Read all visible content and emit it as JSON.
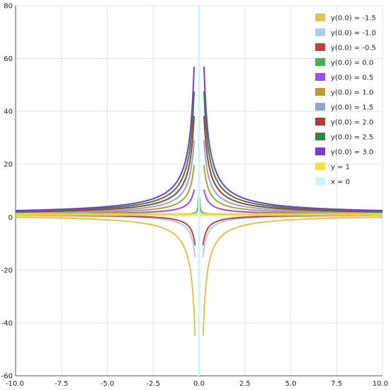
{
  "chart_data": {
    "type": "line",
    "title": "",
    "xlabel": "",
    "ylabel": "",
    "xlim": [
      -10,
      10
    ],
    "ylim": [
      -60,
      80
    ],
    "grid": true,
    "legend_position": "top-right",
    "x_ticks": [
      -10.0,
      -7.5,
      -5.0,
      -2.5,
      0.0,
      2.5,
      5.0,
      7.5,
      10.0
    ],
    "x_tick_labels": [
      "-10.0",
      "-7.5",
      "-5.0",
      "-2.5",
      "0.0",
      "2.5",
      "5.0",
      "7.5",
      "10.0"
    ],
    "y_ticks": [
      -60,
      -40,
      -20,
      0,
      20,
      40,
      60,
      80
    ],
    "y_tick_labels": [
      "-60",
      "-40",
      "-20",
      "0",
      "20",
      "40",
      "60",
      "80"
    ],
    "series": [
      {
        "name": "y(0.0) = -1.5",
        "color": "#e8c04a",
        "kind": "curve",
        "k": -20,
        "clip": [
          -45,
          80
        ]
      },
      {
        "name": "y(0.0) = -1.0",
        "color": "#aacfee",
        "kind": "curve",
        "k": -7,
        "clip": [
          -15,
          80
        ]
      },
      {
        "name": "y(0.0) = -0.5",
        "color": "#c04040",
        "kind": "curve",
        "k": -5,
        "clip": [
          -12,
          80
        ]
      },
      {
        "name": "y(0.0) = 0.0",
        "color": "#4caf50",
        "kind": "curve",
        "k": 0.3,
        "clip": [
          -60,
          80
        ]
      },
      {
        "name": "y(0.0) = 0.5",
        "color": "#a14bee",
        "kind": "curve",
        "k": 5,
        "clip": [
          -60,
          11
        ]
      },
      {
        "name": "y(0.0) = 1.0",
        "color": "#bf9b35",
        "kind": "curve",
        "k": 10,
        "clip": [
          -60,
          23
        ]
      },
      {
        "name": "y(0.0) = 1.5",
        "color": "#88aacc",
        "kind": "curve",
        "k": 15,
        "clip": [
          -60,
          34
        ]
      },
      {
        "name": "y(0.0) = 2.0",
        "color": "#b03a3a",
        "kind": "curve",
        "k": 20,
        "clip": [
          -60,
          45
        ]
      },
      {
        "name": "y(0.0) = 2.5",
        "color": "#2e8b3e",
        "kind": "curve",
        "k": 25,
        "clip": [
          -60,
          57
        ]
      },
      {
        "name": "y(0.0) = 3.0",
        "color": "#7b3bc9",
        "kind": "curve",
        "k": 30,
        "clip": [
          -60,
          68
        ]
      },
      {
        "name": "y = 1",
        "color": "#f5e040",
        "kind": "hline",
        "value": 1
      },
      {
        "name": "x = 0",
        "color": "#ccf5f7",
        "kind": "vline",
        "value": 0
      }
    ]
  }
}
